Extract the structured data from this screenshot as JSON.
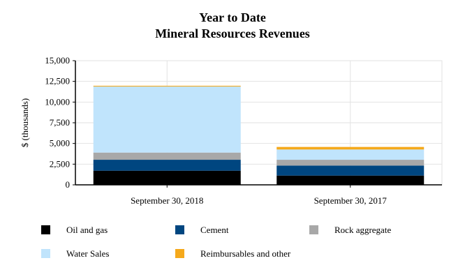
{
  "chart_data": {
    "type": "bar",
    "stacked": true,
    "title": [
      "Year to Date",
      "Mineral Resources Revenues"
    ],
    "xlabel": "",
    "ylabel": "$ (thousands)",
    "ylim": [
      0,
      15000
    ],
    "yticks": [
      0,
      2500,
      5000,
      7500,
      10000,
      12500,
      15000
    ],
    "ytick_labels": [
      "0",
      "2,500",
      "5,000",
      "7,500",
      "10,000",
      "12,500",
      "15,000"
    ],
    "grid": true,
    "legend_position": "bottom",
    "categories": [
      "September 30, 2018",
      "September 30, 2017"
    ],
    "series": [
      {
        "name": "Oil and gas",
        "color": "#000000",
        "values": [
          1710,
          1120
        ]
      },
      {
        "name": "Cement",
        "color": "#004680",
        "values": [
          1320,
          1210
        ]
      },
      {
        "name": "Rock aggregate",
        "color": "#a8a8a8",
        "values": [
          870,
          700
        ]
      },
      {
        "name": "Water Sales",
        "color": "#c0e4fc",
        "values": [
          7980,
          1240
        ]
      },
      {
        "name": "Reimbursables and other",
        "color": "#f5a91c",
        "values": [
          90,
          310
        ]
      }
    ]
  }
}
